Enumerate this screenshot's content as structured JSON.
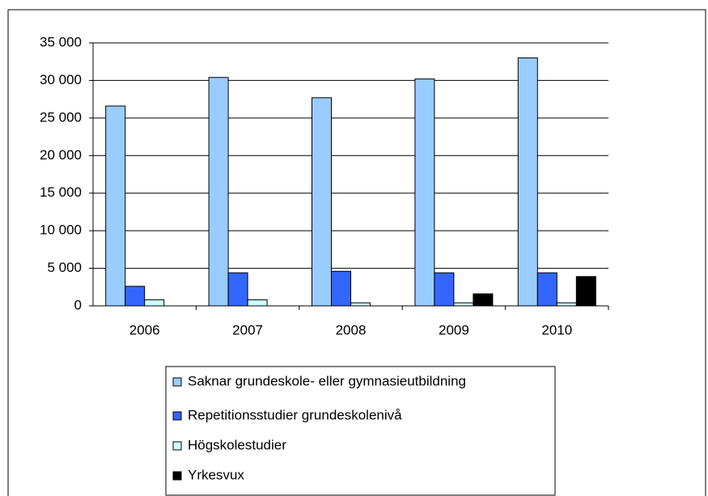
{
  "chart_data": {
    "type": "bar",
    "categories": [
      "2006",
      "2007",
      "2008",
      "2009",
      "2010"
    ],
    "series": [
      {
        "name": "Saknar grundeskole- eller gymnasieutbildning",
        "color": "#99ccff",
        "values": [
          26600,
          30400,
          27700,
          30200,
          33000
        ]
      },
      {
        "name": "Repetitionsstudier grundeskolenivå",
        "color": "#3366ff",
        "values": [
          2600,
          4400,
          4600,
          4400,
          4400
        ]
      },
      {
        "name": "Högskolestudier",
        "color": "#ccffff",
        "values": [
          800,
          800,
          400,
          400,
          400
        ]
      },
      {
        "name": "Yrkesvux",
        "color": "#000000",
        "values": [
          null,
          null,
          null,
          1600,
          3900
        ]
      }
    ],
    "ylim": [
      0,
      35000
    ],
    "yticks": [
      0,
      {
        "value": 5000,
        "label": "5 000"
      },
      {
        "value": 10000,
        "label": "10 000"
      },
      {
        "value": 15000,
        "label": "15 000"
      },
      {
        "value": 20000,
        "label": "20 000"
      },
      {
        "value": 25000,
        "label": "25 000"
      },
      {
        "value": 30000,
        "label": "30 000"
      },
      {
        "value": 35000,
        "label": "35 000"
      }
    ],
    "grid": true
  }
}
